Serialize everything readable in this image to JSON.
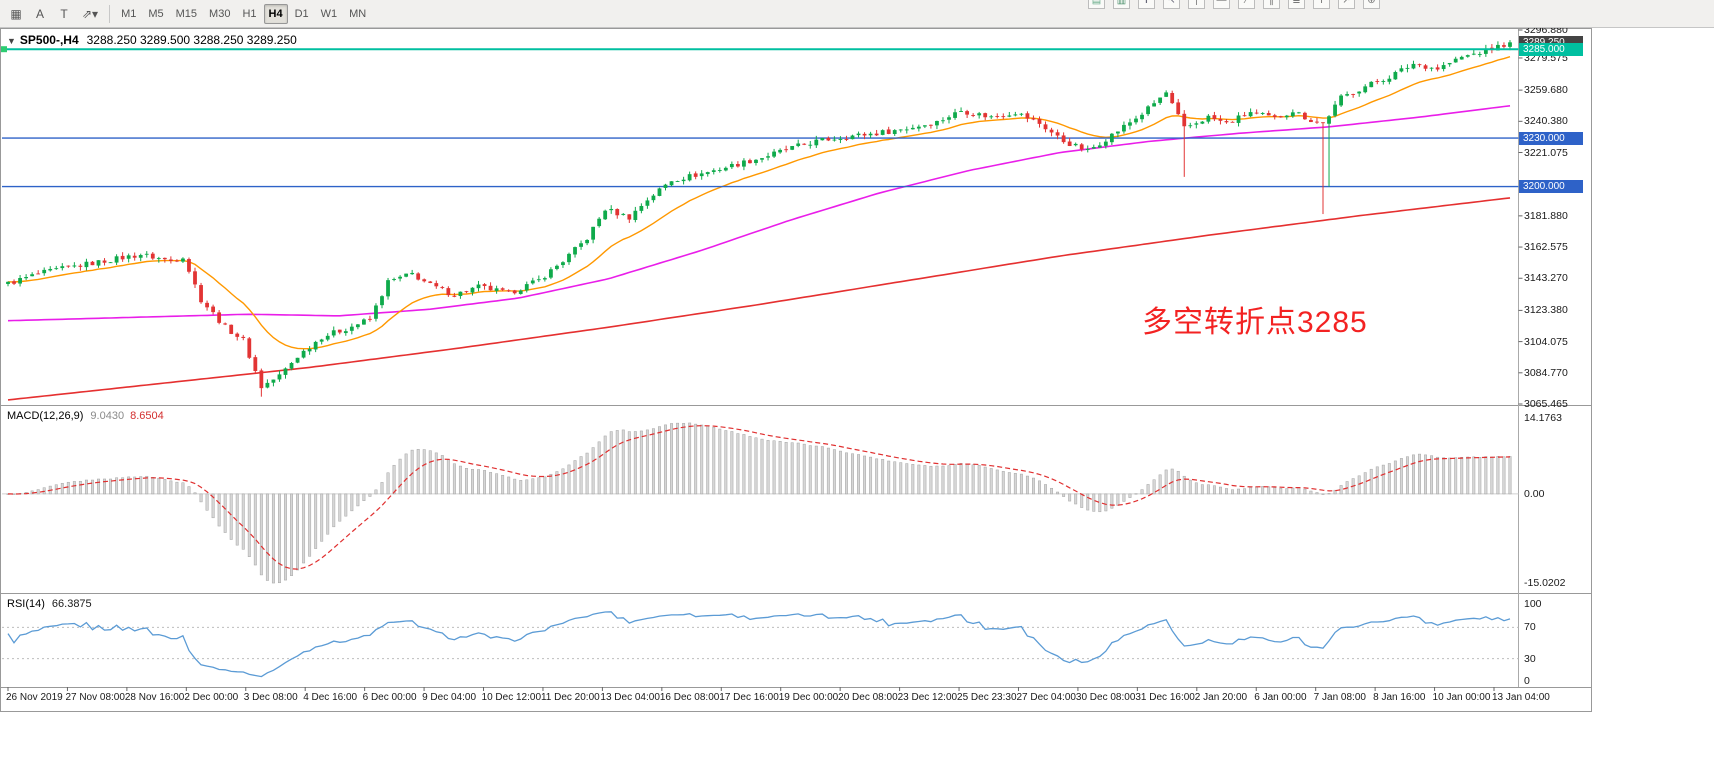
{
  "colors": {
    "up": "#0faa4b",
    "down": "#e23434",
    "ma_fast": "#ff9800",
    "ma_mid": "#e91ee9",
    "ma_slow": "#e53030",
    "macd_bar_fill": "#d6d6d6",
    "macd_bar_stroke": "#a4a4a4",
    "macd_signal": "#e03030",
    "rsi_line": "#5b9bd5",
    "hline_blue": "#2e62c8",
    "hline_teal": "#00bfa0",
    "current_badge": "#444444",
    "annotation": "#f32222"
  },
  "toolbar": {
    "left_icons": [
      {
        "name": "charts-grid-icon",
        "glyph": "▦"
      },
      {
        "name": "font-a-icon",
        "glyph": "A"
      },
      {
        "name": "text-t-icon",
        "glyph": "T"
      },
      {
        "name": "draw-tools-icon",
        "glyph": "⇗▾"
      }
    ],
    "timeframes": [
      "M1",
      "M5",
      "M15",
      "M30",
      "H1",
      "H4",
      "D1",
      "W1",
      "MN"
    ],
    "active_timeframe": "H4",
    "clipped_icons": [
      {
        "name": "new-chart-icon",
        "glyph": "▤",
        "color": "#6a8"
      },
      {
        "name": "chart-mode-icon",
        "glyph": "▥",
        "color": "#4a8f6a"
      },
      {
        "name": "crosshair-icon",
        "glyph": "✛",
        "color": "#667"
      },
      {
        "name": "cursor-icon",
        "glyph": "↖",
        "color": "#667"
      },
      {
        "name": "vertical-line-icon",
        "glyph": "|",
        "color": "#777"
      },
      {
        "name": "horizontal-line-icon",
        "glyph": "—",
        "color": "#777"
      },
      {
        "name": "trendline-icon",
        "glyph": "∕",
        "color": "#777"
      },
      {
        "name": "channel-icon",
        "glyph": "∥",
        "color": "#777"
      },
      {
        "name": "fibonacci-icon",
        "glyph": "≣",
        "color": "#777"
      },
      {
        "name": "text-label-icon",
        "glyph": "T",
        "color": "#777"
      },
      {
        "name": "arrow-tool-icon",
        "glyph": "↗",
        "color": "#777"
      },
      {
        "name": "zoom-in-icon",
        "glyph": "⊕",
        "color": "#777"
      }
    ]
  },
  "main_chart": {
    "header": {
      "symbol": "SP500-,H4",
      "ohlc": "3288.250 3289.500 3288.250 3289.250"
    },
    "annotation": "多空转折点3285",
    "price_axis": [
      {
        "label": "3296.880",
        "price": 3296.88
      },
      {
        "label": "3279.575",
        "price": 3279.575
      },
      {
        "label": "3259.680",
        "price": 3259.68
      },
      {
        "label": "3240.380",
        "price": 3240.38
      },
      {
        "label": "3221.075",
        "price": 3221.075
      },
      {
        "label": "3181.880",
        "price": 3181.88
      },
      {
        "label": "3162.575",
        "price": 3162.575
      },
      {
        "label": "3143.270",
        "price": 3143.27
      },
      {
        "label": "3123.380",
        "price": 3123.38
      },
      {
        "label": "3104.075",
        "price": 3104.075
      },
      {
        "label": "3084.770",
        "price": 3084.77
      },
      {
        "label": "3065.465",
        "price": 3065.465
      }
    ],
    "current_price": {
      "label": "3289.250",
      "price": 3289.25
    },
    "hlines": [
      {
        "name": "hline-3285",
        "label": "3285.000",
        "price": 3285.0,
        "color": "#00bfa0",
        "width": 2
      },
      {
        "name": "hline-3230",
        "label": "3230.000",
        "price": 3230.0,
        "color": "#2e62c8",
        "width": 1.4
      },
      {
        "name": "hline-3200",
        "label": "3200.000",
        "price": 3200.0,
        "color": "#2e62c8",
        "width": 1.4
      }
    ],
    "price_range": {
      "top": 3296.88,
      "bottom": 3065.465
    }
  },
  "chart_data": {
    "type": "candlestick",
    "symbol": "SP500",
    "timeframe": "H4",
    "candle_count": 250,
    "close_keyframes": [
      [
        0,
        3140
      ],
      [
        5,
        3146
      ],
      [
        10,
        3150
      ],
      [
        16,
        3154
      ],
      [
        22,
        3158
      ],
      [
        27,
        3154
      ],
      [
        29,
        3157
      ],
      [
        32,
        3130
      ],
      [
        36,
        3113
      ],
      [
        39,
        3105
      ],
      [
        42,
        3076
      ],
      [
        45,
        3083
      ],
      [
        48,
        3095
      ],
      [
        52,
        3107
      ],
      [
        56,
        3112
      ],
      [
        60,
        3118
      ],
      [
        63,
        3141
      ],
      [
        67,
        3146
      ],
      [
        70,
        3139
      ],
      [
        74,
        3133
      ],
      [
        78,
        3138
      ],
      [
        83,
        3134
      ],
      [
        88,
        3142
      ],
      [
        92,
        3154
      ],
      [
        96,
        3168
      ],
      [
        99,
        3186
      ],
      [
        103,
        3181
      ],
      [
        106,
        3192
      ],
      [
        110,
        3204
      ],
      [
        115,
        3208
      ],
      [
        120,
        3213
      ],
      [
        125,
        3218
      ],
      [
        130,
        3224
      ],
      [
        134,
        3228
      ],
      [
        139,
        3231
      ],
      [
        144,
        3233
      ],
      [
        149,
        3236
      ],
      [
        154,
        3240
      ],
      [
        158,
        3247
      ],
      [
        163,
        3243
      ],
      [
        167,
        3246
      ],
      [
        171,
        3239
      ],
      [
        175,
        3228
      ],
      [
        179,
        3222
      ],
      [
        183,
        3232
      ],
      [
        188,
        3245
      ],
      [
        192,
        3258
      ],
      [
        195,
        3236
      ],
      [
        199,
        3243
      ],
      [
        202,
        3239
      ],
      [
        206,
        3246
      ],
      [
        210,
        3242
      ],
      [
        213,
        3247
      ],
      [
        216,
        3241
      ],
      [
        218,
        3239
      ],
      [
        221,
        3255
      ],
      [
        225,
        3262
      ],
      [
        229,
        3268
      ],
      [
        233,
        3276
      ],
      [
        237,
        3273
      ],
      [
        241,
        3280
      ],
      [
        245,
        3284
      ],
      [
        249,
        3289.25
      ]
    ],
    "special_lows": {
      "42": 3070,
      "195": 3206,
      "218": 3183,
      "219": 3200
    },
    "last_close": 3289.25,
    "ma_lines": [
      {
        "name": "ma-fast-orange",
        "type": "ema",
        "period": 16
      },
      {
        "name": "ma-mid-magenta",
        "type": "keypoints",
        "points": [
          [
            0,
            3117
          ],
          [
            0.08,
            3119
          ],
          [
            0.16,
            3121
          ],
          [
            0.22,
            3120
          ],
          [
            0.28,
            3124
          ],
          [
            0.34,
            3131
          ],
          [
            0.4,
            3143
          ],
          [
            0.46,
            3160
          ],
          [
            0.52,
            3179
          ],
          [
            0.58,
            3196
          ],
          [
            0.64,
            3210
          ],
          [
            0.7,
            3221
          ],
          [
            0.76,
            3228
          ],
          [
            0.82,
            3233
          ],
          [
            0.88,
            3237
          ],
          [
            0.94,
            3243
          ],
          [
            1,
            3250
          ]
        ]
      },
      {
        "name": "ma-slow-red",
        "type": "keypoints",
        "points": [
          [
            0,
            3068
          ],
          [
            0.1,
            3078
          ],
          [
            0.2,
            3088
          ],
          [
            0.3,
            3100
          ],
          [
            0.4,
            3113
          ],
          [
            0.5,
            3127
          ],
          [
            0.6,
            3142
          ],
          [
            0.7,
            3157
          ],
          [
            0.8,
            3170
          ],
          [
            0.9,
            3182
          ],
          [
            1,
            3193
          ]
        ]
      }
    ]
  },
  "macd_panel": {
    "title": "MACD(12,26,9)",
    "value_main": "9.0430",
    "value_signal": "8.6504",
    "axis": {
      "top": "14.1763",
      "zero": "0.00",
      "bottom": "-15.0202"
    },
    "params": {
      "fast": 12,
      "slow": 26,
      "signal": 9
    }
  },
  "rsi_panel": {
    "title": "RSI(14)",
    "value": "66.3875",
    "period": 14,
    "axis": [
      "100",
      "70",
      "30",
      "0"
    ],
    "levels": [
      70,
      30
    ]
  },
  "time_axis": [
    "26 Nov 2019",
    "27 Nov 08:00",
    "28 Nov 16:00",
    "2 Dec 00:00",
    "3 Dec 08:00",
    "4 Dec 16:00",
    "6 Dec 00:00",
    "9 Dec 04:00",
    "10 Dec 12:00",
    "11 Dec 20:00",
    "13 Dec 04:00",
    "16 Dec 08:00",
    "17 Dec 16:00",
    "19 Dec 00:00",
    "20 Dec 08:00",
    "23 Dec 12:00",
    "25 Dec 23:30",
    "27 Dec 04:00",
    "30 Dec 08:00",
    "31 Dec 16:00",
    "2 Jan 20:00",
    "6 Jan 00:00",
    "7 Jan 08:00",
    "8 Jan 16:00",
    "10 Jan 00:00",
    "13 Jan 04:00"
  ]
}
